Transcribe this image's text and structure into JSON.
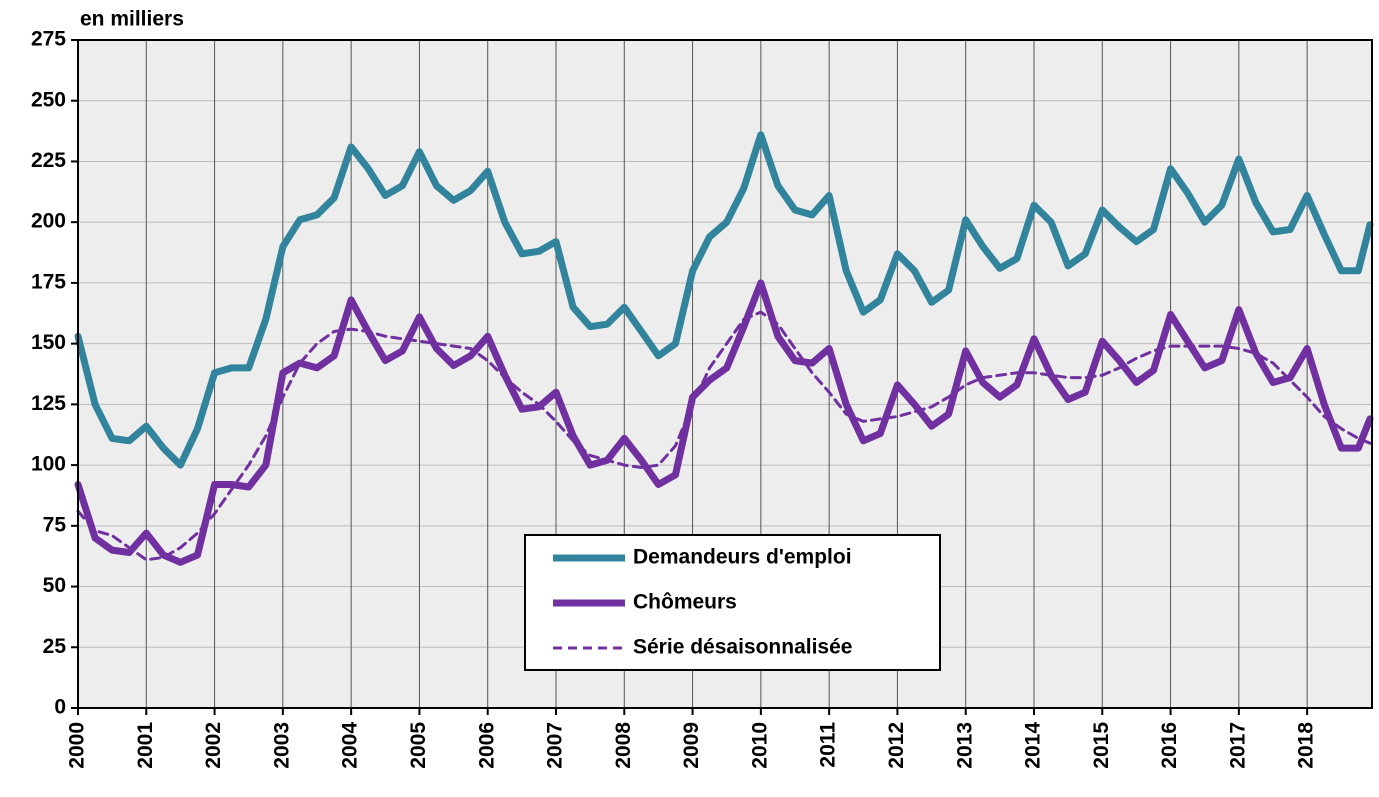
{
  "chart_data": {
    "type": "line",
    "ylabel": "en milliers",
    "x": [
      2000,
      2000.25,
      2000.5,
      2000.75,
      2001,
      2001.25,
      2001.5,
      2001.75,
      2002,
      2002.25,
      2002.5,
      2002.75,
      2003,
      2003.25,
      2003.5,
      2003.75,
      2004,
      2004.25,
      2004.5,
      2004.75,
      2005,
      2005.25,
      2005.5,
      2005.75,
      2006,
      2006.25,
      2006.5,
      2006.75,
      2007,
      2007.25,
      2007.5,
      2007.75,
      2008,
      2008.25,
      2008.5,
      2008.75,
      2009,
      2009.25,
      2009.5,
      2009.75,
      2010,
      2010.25,
      2010.5,
      2010.75,
      2011,
      2011.25,
      2011.5,
      2011.75,
      2012,
      2012.25,
      2012.5,
      2012.75,
      2013,
      2013.25,
      2013.5,
      2013.75,
      2014,
      2014.25,
      2014.5,
      2014.75,
      2015,
      2015.25,
      2015.5,
      2015.75,
      2016,
      2016.25,
      2016.5,
      2016.75,
      2017,
      2017.25,
      2017.5,
      2017.75,
      2018,
      2018.25,
      2018.5,
      2018.75,
      2018.92
    ],
    "series": [
      {
        "name": "Demandeurs d'emploi",
        "color": "#31849b",
        "style": "solid",
        "values": [
          153,
          125,
          111,
          110,
          116,
          107,
          100,
          115,
          138,
          140,
          140,
          160,
          190,
          201,
          203,
          210,
          231,
          222,
          211,
          215,
          229,
          215,
          209,
          213,
          221,
          200,
          187,
          188,
          192,
          165,
          157,
          158,
          165,
          155,
          145,
          150,
          180,
          194,
          200,
          214,
          236,
          215,
          205,
          203,
          211,
          180,
          163,
          168,
          187,
          180,
          167,
          172,
          201,
          190,
          181,
          185,
          207,
          200,
          182,
          187,
          205,
          198,
          192,
          197,
          222,
          212,
          200,
          207,
          226,
          208,
          196,
          197,
          211,
          195,
          180,
          180,
          199
        ]
      },
      {
        "name": "Chômeurs",
        "color": "#7030a0",
        "style": "solid",
        "values": [
          92,
          70,
          65,
          64,
          72,
          63,
          60,
          63,
          92,
          92,
          91,
          100,
          138,
          142,
          140,
          145,
          168,
          155,
          143,
          147,
          161,
          148,
          141,
          145,
          153,
          137,
          123,
          124,
          130,
          112,
          100,
          102,
          111,
          102,
          92,
          96,
          128,
          135,
          140,
          157,
          175,
          153,
          143,
          142,
          148,
          125,
          110,
          113,
          133,
          125,
          116,
          121,
          147,
          134,
          128,
          133,
          152,
          137,
          127,
          130,
          151,
          143,
          134,
          139,
          162,
          151,
          140,
          143,
          164,
          146,
          134,
          136,
          148,
          125,
          107,
          107,
          119
        ]
      },
      {
        "name": "Série désaisonnalisée",
        "color": "#7030a0",
        "style": "dashed",
        "values": [
          81,
          73,
          71,
          66,
          61,
          62,
          66,
          72,
          80,
          90,
          100,
          112,
          128,
          142,
          150,
          155,
          156,
          155,
          153,
          152,
          151,
          150,
          149,
          148,
          143,
          136,
          130,
          125,
          118,
          110,
          104,
          102,
          100,
          99,
          100,
          108,
          125,
          140,
          150,
          160,
          163,
          158,
          148,
          138,
          130,
          121,
          118,
          119,
          120,
          122,
          124,
          128,
          133,
          136,
          137,
          138,
          138,
          137,
          136,
          136,
          137,
          140,
          144,
          147,
          149,
          149,
          149,
          149,
          148,
          146,
          142,
          135,
          128,
          120,
          115,
          111,
          109
        ]
      }
    ],
    "xlim": [
      2000,
      2018.95
    ],
    "xticks": [
      2000,
      2001,
      2002,
      2003,
      2004,
      2005,
      2006,
      2007,
      2008,
      2009,
      2010,
      2011,
      2012,
      2013,
      2014,
      2015,
      2016,
      2017,
      2018
    ],
    "ylim": [
      0,
      275
    ],
    "yticks": [
      0,
      25,
      50,
      75,
      100,
      125,
      150,
      175,
      200,
      225,
      250,
      275
    ],
    "grid": true
  }
}
